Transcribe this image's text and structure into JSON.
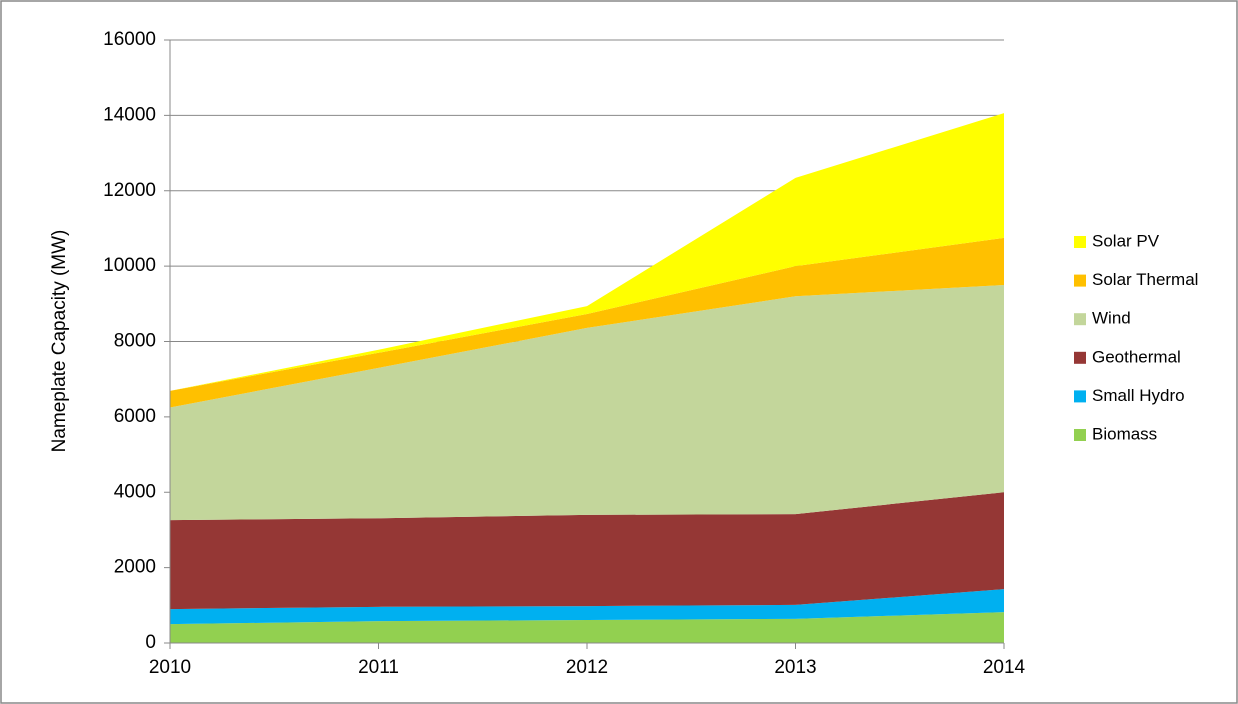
{
  "chart_data": {
    "type": "stacked-area",
    "y_label": "Nameplate Capacity (MW)",
    "categories": [
      "2010",
      "2011",
      "2012",
      "2013",
      "2014"
    ],
    "series": [
      {
        "name": "Biomass",
        "color": "#92d050",
        "values": [
          500,
          580,
          610,
          640,
          820
        ]
      },
      {
        "name": "Small Hydro",
        "color": "#00b0f0",
        "values": [
          400,
          380,
          370,
          370,
          610
        ]
      },
      {
        "name": "Geothermal",
        "color": "#953735",
        "values": [
          2360,
          2350,
          2420,
          2410,
          2570
        ]
      },
      {
        "name": "Wind",
        "color": "#c3d69b",
        "values": [
          2990,
          3990,
          4960,
          5780,
          5500
        ]
      },
      {
        "name": "Solar Thermal",
        "color": "#ffc000",
        "values": [
          440,
          400,
          370,
          800,
          1250
        ]
      },
      {
        "name": "Solar PV",
        "color": "#ffff00",
        "values": [
          0,
          80,
          210,
          2340,
          3310
        ]
      }
    ],
    "ylim": [
      0,
      16000
    ],
    "yticks": [
      0,
      2000,
      4000,
      6000,
      8000,
      10000,
      12000,
      14000,
      16000
    ],
    "grid": true,
    "legend": "right"
  }
}
